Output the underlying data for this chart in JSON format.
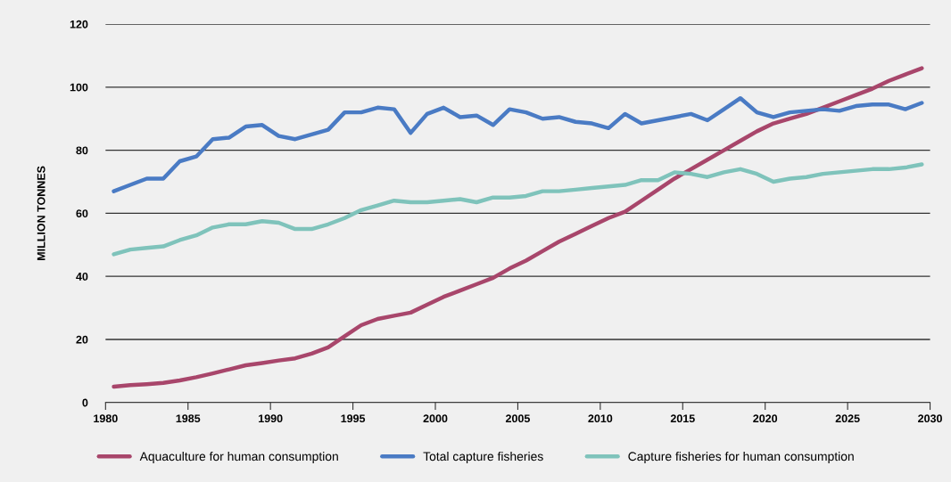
{
  "chart_data": {
    "type": "line",
    "ylabel": "MILLION TONNES",
    "x": [
      1980.5,
      1981.5,
      1982.5,
      1983.5,
      1984.5,
      1985.5,
      1986.5,
      1987.5,
      1988.5,
      1989.5,
      1990.5,
      1991.5,
      1992.5,
      1993.5,
      1994.5,
      1995.5,
      1996.5,
      1997.5,
      1998.5,
      1999.5,
      2000.5,
      2001.5,
      2002.5,
      2003.5,
      2004.5,
      2005.5,
      2006.5,
      2007.5,
      2008.5,
      2009.5,
      2010.5,
      2011.5,
      2012.5,
      2013.5,
      2014.5,
      2015.5,
      2016.5,
      2017.5,
      2018.5,
      2019.5,
      2020.5,
      2021.5,
      2022.5,
      2023.5,
      2024.5,
      2025.5,
      2026.5,
      2027.5,
      2028.5,
      2029.5
    ],
    "series": [
      {
        "name": "Aquaculture for human consumption",
        "color": "#a8466b",
        "values": [
          5,
          5.5,
          5.8,
          6.2,
          7,
          8,
          9.2,
          10.5,
          11.8,
          12.5,
          13.3,
          14,
          15.5,
          17.5,
          21,
          24.5,
          26.5,
          27.5,
          28.5,
          31,
          33.5,
          35.5,
          37.5,
          39.5,
          42.5,
          45,
          48,
          51,
          53.5,
          56,
          58.5,
          60.5,
          64,
          67.5,
          71,
          74,
          77,
          80,
          83,
          86,
          88.5,
          90,
          91.5,
          93.5,
          95.5,
          97.5,
          99.5,
          102,
          104,
          106
        ]
      },
      {
        "name": "Total capture fisheries",
        "color": "#4a7bc4",
        "values": [
          67,
          69,
          71,
          71,
          76.5,
          78,
          83.5,
          84,
          87.5,
          88,
          84.5,
          83.5,
          85,
          86.5,
          92,
          92,
          93.5,
          93,
          85.5,
          91.5,
          93.5,
          90.5,
          91,
          88,
          93,
          92,
          90,
          90.5,
          89,
          88.5,
          87,
          91.5,
          88.5,
          89.5,
          90.5,
          91.5,
          89.5,
          93,
          96.5,
          92,
          90.5,
          92,
          92.5,
          93,
          92.5,
          94,
          94.5,
          94.5,
          93,
          95
        ]
      },
      {
        "name": "Capture fisheries for human consumption",
        "color": "#7fc3bb",
        "values": [
          47,
          48.5,
          49,
          49.5,
          51.5,
          53,
          55.5,
          56.5,
          56.5,
          57.5,
          57,
          55,
          55,
          56.5,
          58.5,
          61,
          62.5,
          64,
          63.5,
          63.5,
          64,
          64.5,
          63.5,
          65,
          65,
          65.5,
          67,
          67,
          67.5,
          68,
          68.5,
          69,
          70.5,
          70.5,
          73,
          72.5,
          71.5,
          73,
          74,
          72.5,
          70,
          71,
          71.5,
          72.5,
          73,
          73.5,
          74,
          74,
          74.5,
          75.5
        ]
      }
    ],
    "xlim": [
      1980,
      2030
    ],
    "xticks": [
      1980,
      1985,
      1990,
      1995,
      2000,
      2005,
      2010,
      2015,
      2020,
      2025,
      2030
    ],
    "ylim": [
      0,
      120
    ],
    "yticks": [
      0,
      20,
      40,
      60,
      80,
      100,
      120
    ],
    "grid": "y",
    "legend": "bottom",
    "marker": "none",
    "line_style": "solid"
  }
}
